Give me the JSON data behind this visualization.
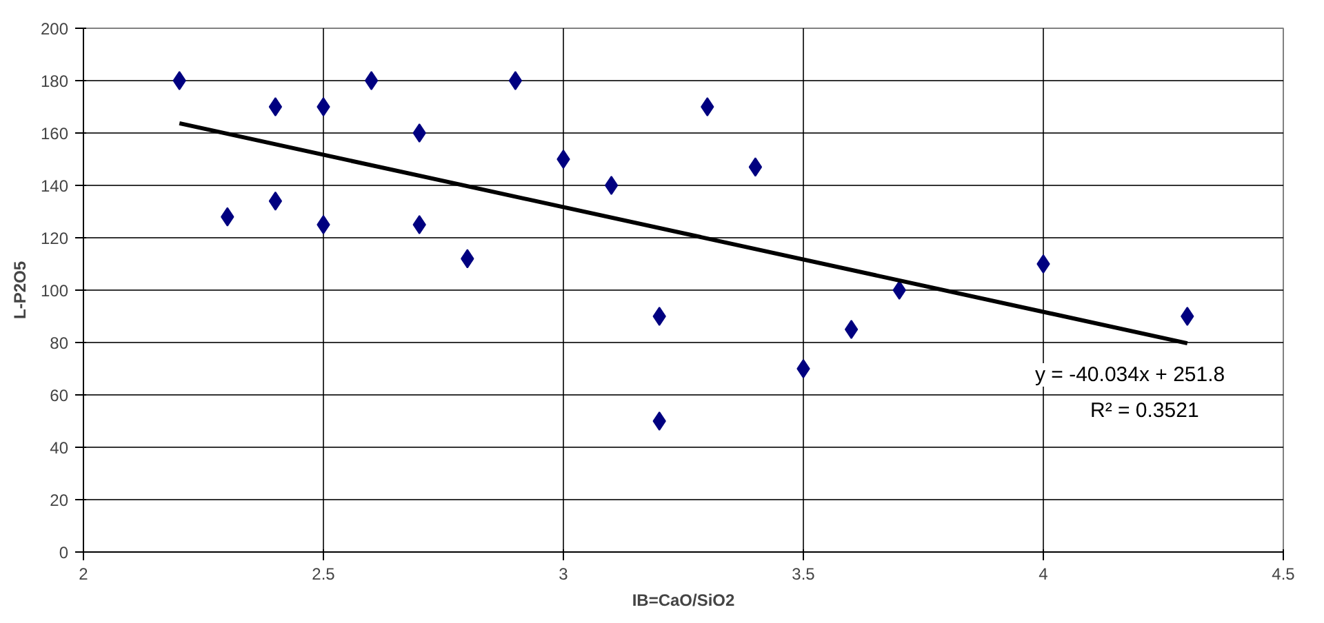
{
  "chart_data": {
    "type": "scatter",
    "xlabel": "IB=CaO/SiO2",
    "ylabel": "L-P2O5",
    "xlim": [
      2,
      4.5
    ],
    "xticks": [
      2,
      2.5,
      3,
      3.5,
      4,
      4.5
    ],
    "ylim": [
      0,
      200
    ],
    "yticks": [
      0,
      20,
      40,
      60,
      80,
      100,
      120,
      140,
      160,
      180,
      200
    ],
    "grid": true,
    "marker": "diamond",
    "series": [
      {
        "color": "#000080",
        "x": [
          2.2,
          2.3,
          2.4,
          2.4,
          2.5,
          2.5,
          2.6,
          2.7,
          2.7,
          2.8,
          2.9,
          3.0,
          3.1,
          3.2,
          3.2,
          3.3,
          3.4,
          3.5,
          3.6,
          3.7,
          4.0,
          4.3
        ],
        "values": [
          180,
          128,
          170,
          134,
          170,
          125,
          180,
          160,
          125,
          112,
          180,
          150,
          140,
          90,
          50,
          170,
          147,
          70,
          85,
          100,
          110,
          90
        ]
      },
      {
        "type": "line",
        "marker": "none",
        "color": "#000000",
        "x": [
          2.2,
          4.3
        ],
        "values": [
          163.7,
          79.7
        ]
      }
    ],
    "annotations": [
      "y = -40.034x + 251.8",
      "R² = 0.3521"
    ]
  }
}
